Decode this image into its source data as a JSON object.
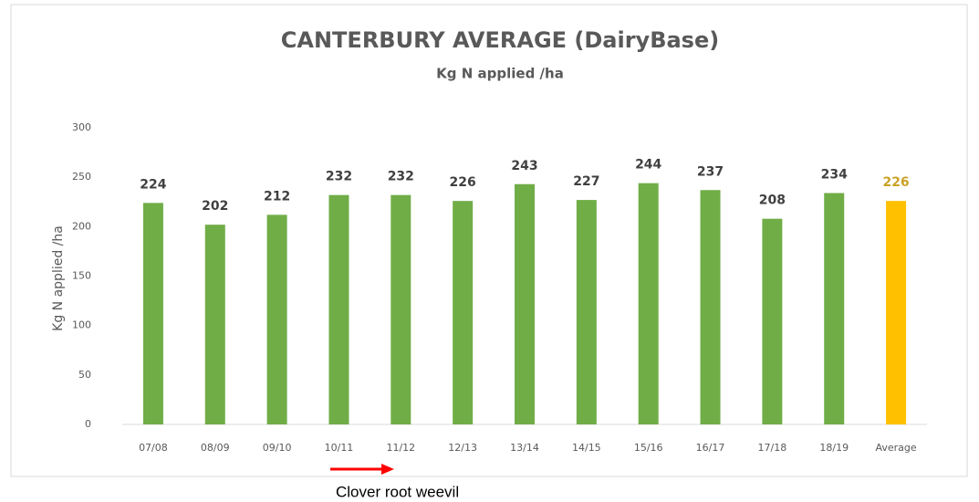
{
  "chart_data": {
    "type": "bar",
    "title": "CANTERBURY AVERAGE (DairyBase)",
    "subtitle": "Kg N applied /ha",
    "y_axis_label": "Kg N applied /ha",
    "categories": [
      "07/08",
      "08/09",
      "09/10",
      "10/11",
      "11/12",
      "12/13",
      "13/14",
      "14/15",
      "15/16",
      "16/17",
      "17/18",
      "18/19",
      "Average"
    ],
    "values": [
      224,
      202,
      212,
      232,
      232,
      226,
      243,
      227,
      244,
      237,
      208,
      234,
      226
    ],
    "colors": [
      "#70ad47",
      "#70ad47",
      "#70ad47",
      "#70ad47",
      "#70ad47",
      "#70ad47",
      "#70ad47",
      "#70ad47",
      "#70ad47",
      "#70ad47",
      "#70ad47",
      "#70ad47",
      "#ffc000"
    ],
    "label_colors": [
      "#404040",
      "#404040",
      "#404040",
      "#404040",
      "#404040",
      "#404040",
      "#404040",
      "#404040",
      "#404040",
      "#404040",
      "#404040",
      "#404040",
      "#c9a227"
    ],
    "ylim": [
      0,
      300
    ],
    "yticks": [
      0,
      50,
      100,
      150,
      200,
      250,
      300
    ],
    "grid": false,
    "annotation": "Clover root weevil"
  }
}
